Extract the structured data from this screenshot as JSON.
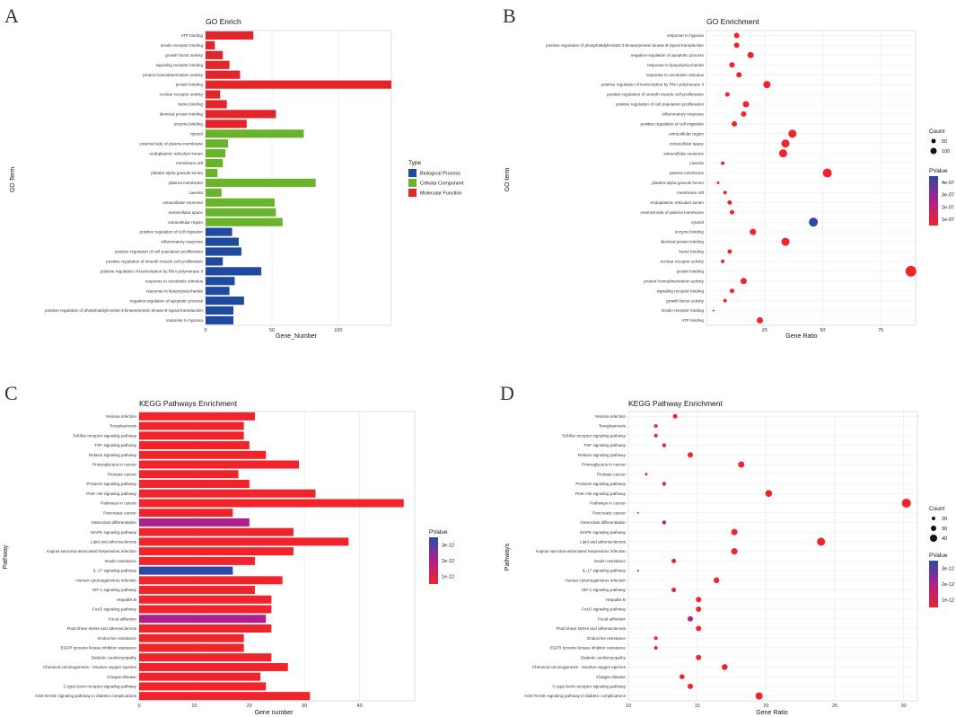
{
  "colors": {
    "bio": "#1f4aa0",
    "cell": "#6ab42d",
    "mol": "#e0262a",
    "p_high": "#2a4aa8",
    "p_mid": "#b0208a",
    "p_low": "#f0242a",
    "grid": "#e8e8e8"
  },
  "chart_data": [
    {
      "panel": "A",
      "type": "bar",
      "title": "GO Enrich",
      "xlabel": "Gene_Number",
      "ylabel": "GO Term",
      "xlim": [
        0,
        140
      ],
      "xticks": [
        0,
        50,
        100
      ],
      "legend": {
        "title": "Type",
        "items": [
          {
            "name": "Biological Process",
            "color": "#1f4aa0"
          },
          {
            "name": "Cellular Component",
            "color": "#6ab42d"
          },
          {
            "name": "Molecular Function",
            "color": "#e0262a"
          }
        ]
      },
      "categories": [
        "ATP binding",
        "insulin receptor binding",
        "growth factor activity",
        "signaling receptor binding",
        "protein homodimerization activity",
        "protein binding",
        "nuclear receptor activity",
        "heme binding",
        "identical protein binding",
        "enzyme binding",
        "cytosol",
        "external side of plasma membrane",
        "endoplasmic reticulum lumen",
        "membrane raft",
        "platelet alpha granule lumen",
        "plasma membrane",
        "caveola",
        "extracellular exosome",
        "extracellular space",
        "extracellular region",
        "positive regulation of cell migration",
        "inflammatory response",
        "positive regulation of cell population proliferation",
        "positive regulation of smooth muscle cell proliferation",
        "positive regulation of transcription by RNA polymerase II",
        "response to xenobiotic stimulus",
        "response to lipopolysaccharide",
        "negative regulation of apoptotic process",
        "positive regulation of phosphatidylinositol 3-kinase/protein kinase B signal transduction",
        "response to hypoxia"
      ],
      "values": [
        36,
        7,
        13,
        18,
        26,
        140,
        11,
        16,
        53,
        31,
        74,
        17,
        15,
        13,
        9,
        83,
        12,
        52,
        53,
        58,
        20,
        25,
        27,
        13,
        42,
        22,
        18,
        29,
        21,
        21
      ],
      "types": [
        "mol",
        "mol",
        "mol",
        "mol",
        "mol",
        "mol",
        "mol",
        "mol",
        "mol",
        "mol",
        "cell",
        "cell",
        "cell",
        "cell",
        "cell",
        "cell",
        "cell",
        "cell",
        "cell",
        "cell",
        "bio",
        "bio",
        "bio",
        "bio",
        "bio",
        "bio",
        "bio",
        "bio",
        "bio",
        "bio"
      ]
    },
    {
      "panel": "B",
      "type": "scatter",
      "title": "GO Enrichment",
      "xlabel": "Gene Ratio",
      "ylabel": "GO term",
      "xlim": [
        0,
        90
      ],
      "xticks": [
        25,
        50,
        75
      ],
      "size_legend": {
        "title": "Count",
        "items": [
          50,
          100
        ]
      },
      "color_legend": {
        "title": "PValue",
        "labels": [
          "4e-07",
          "3e-07",
          "2e-07",
          "1e-07"
        ]
      },
      "categories": [
        "response to hypoxia",
        "positive regulation of phosphatidylinositol 3-kinase/protein kinase B signal transduction",
        "negative regulation of apoptotic process",
        "response to lipopolysaccharide",
        "response to xenobiotic stimulus",
        "positive regulation of transcription by RNA polymerase II",
        "positive regulation of smooth muscle cell proliferation",
        "positive regulation of cell population proliferation",
        "inflammatory response",
        "positive regulation of cell migration",
        "extracellular region",
        "extracellular space",
        "extracellular exosome",
        "caveola",
        "plasma membrane",
        "platelet alpha granule lumen",
        "membrane raft",
        "endoplasmic reticulum lumen",
        "external side of plasma membrane",
        "cytosol",
        "enzyme binding",
        "identical protein binding",
        "heme binding",
        "nuclear receptor activity",
        "protein binding",
        "protein homodimerization activity",
        "signaling receptor binding",
        "growth factor activity",
        "insulin receptor binding",
        "ATP binding"
      ],
      "x": [
        13,
        13,
        19,
        11,
        14,
        26,
        9,
        17,
        16,
        12,
        37,
        34,
        33,
        7,
        52,
        5,
        8,
        10,
        11,
        46,
        20,
        34,
        10,
        7,
        88,
        16,
        11,
        8,
        3,
        23
      ],
      "sizes": [
        3,
        3,
        3.5,
        3,
        3,
        4,
        2.5,
        3.5,
        3,
        3,
        4.5,
        4.5,
        4.5,
        2,
        5,
        1.5,
        2,
        2.5,
        2.5,
        5,
        3.5,
        4.5,
        2.5,
        2,
        6,
        3.5,
        2.5,
        2,
        1,
        3.5
      ],
      "pvalue_color": [
        "low",
        "low",
        "low",
        "low",
        "low",
        "low",
        "low",
        "low",
        "low",
        "low",
        "low",
        "low",
        "low",
        "low",
        "low",
        "low",
        "low",
        "low",
        "low",
        "high",
        "low",
        "low",
        "low",
        "low",
        "low",
        "low",
        "low",
        "low",
        "low",
        "low"
      ]
    },
    {
      "panel": "C",
      "type": "bar",
      "title": "KEGG Pathways Enrichment",
      "xlabel": "Gene number",
      "ylabel": "Pathway",
      "xlim": [
        0,
        50
      ],
      "xticks": [
        0,
        10,
        20,
        30,
        40
      ],
      "color_legend": {
        "title": "PValue",
        "labels": [
          "3e-12",
          "2e-12",
          "1e-12"
        ]
      },
      "categories": [
        "Yersinia infection",
        "Toxoplasmosis",
        "Toll-like receptor signaling pathway",
        "TNF signaling pathway",
        "Relaxin signaling pathway",
        "Proteoglycans in cancer",
        "Prostate cancer",
        "Prolactin signaling pathway",
        "PI3K-Akt signaling pathway",
        "Pathways in cancer",
        "Pancreatic cancer",
        "Osteoclast differentiation",
        "MAPK signaling pathway",
        "Lipid and atherosclerosis",
        "Kaposi sarcoma-associated herpesvirus infection",
        "Insulin resistance",
        "IL-17 signaling pathway",
        "Human cytomegalovirus infection",
        "HIF-1 signaling pathway",
        "Hepatitis B",
        "FoxO signaling pathway",
        "Focal adhesion",
        "Fluid shear stress and atherosclerosis",
        "Endocrine resistance",
        "EGFR tyrosine kinase inhibitor resistance",
        "Diabetic cardiomyopathy",
        "Chemical carcinogenesis - reactive oxygen species",
        "Chagas disease",
        "C-type lectin receptor signaling pathway",
        "AGE-RAGE signaling pathway in diabetic complications"
      ],
      "values": [
        21,
        19,
        19,
        20,
        23,
        29,
        18,
        20,
        32,
        48,
        17,
        20,
        28,
        38,
        28,
        21,
        17,
        26,
        21,
        24,
        24,
        23,
        24,
        19,
        19,
        24,
        27,
        22,
        23,
        31
      ],
      "pvalue_color": [
        "low",
        "low",
        "low",
        "low",
        "low",
        "low",
        "low",
        "low",
        "low",
        "low",
        "low",
        "mid",
        "low",
        "low",
        "low",
        "low",
        "high",
        "low",
        "low",
        "low",
        "low",
        "mid",
        "low",
        "low",
        "low",
        "low",
        "low",
        "low",
        "low",
        "low"
      ]
    },
    {
      "panel": "D",
      "type": "scatter",
      "title": "KEGG Pathway Enrichment",
      "xlabel": "Gene Ratio",
      "ylabel": "Pathways",
      "xlim": [
        10,
        31
      ],
      "xticks": [
        10,
        15,
        20,
        25,
        30
      ],
      "size_legend": {
        "title": "Count",
        "items": [
          20,
          30,
          40
        ]
      },
      "color_legend": {
        "title": "PValue",
        "labels": [
          "3e-12",
          "2e-12",
          "1e-12"
        ]
      },
      "categories": [
        "Yersinia infection",
        "Toxoplasmosis",
        "Toll-like receptor signaling pathway",
        "TNF signaling pathway",
        "Relaxin signaling pathway",
        "Proteoglycans in cancer",
        "Prostate cancer",
        "Prolactin signaling pathway",
        "PI3K-Akt signaling pathway",
        "Pathways in cancer",
        "Pancreatic cancer",
        "Osteoclast differentiation",
        "MAPK signaling pathway",
        "Lipid and atherosclerosis",
        "Kaposi sarcoma-associated herpesvirus infection",
        "Insulin resistance",
        "IL-17 signaling pathway",
        "Human cytomegalovirus infection",
        "HIF-1 signaling pathway",
        "Hepatitis B",
        "FoxO signaling pathway",
        "Focal adhesion",
        "Fluid shear stress and atherosclerosis",
        "Endocrine resistance",
        "EGFR tyrosine kinase inhibitor resistance",
        "Diabetic cardiomyopathy",
        "Chemical carcinogenesis - reactive oxygen species",
        "Chagas disease",
        "C-type lectin receptor signaling pathway",
        "AGE-RAGE signaling pathway in diabetic complications"
      ],
      "x": [
        13.4,
        12.0,
        12.0,
        12.6,
        14.5,
        18.2,
        11.3,
        12.6,
        20.2,
        30.2,
        10.7,
        12.6,
        17.7,
        24.0,
        17.7,
        13.3,
        10.7,
        16.4,
        13.3,
        15.1,
        15.1,
        14.5,
        15.1,
        12.0,
        12.0,
        15.1,
        17.0,
        13.9,
        14.5,
        19.5
      ],
      "sizes": [
        2.5,
        2,
        2,
        2.2,
        3,
        3.5,
        1.5,
        2.2,
        3.8,
        5,
        1,
        2.2,
        3.5,
        4.5,
        3.5,
        2.5,
        1,
        3.2,
        2.5,
        3,
        3,
        3,
        3,
        2,
        2,
        3,
        3.3,
        2.8,
        3,
        4
      ],
      "pvalue_color": [
        "low",
        "low",
        "low",
        "low",
        "low",
        "low",
        "low",
        "low",
        "low",
        "low",
        "low",
        "mid",
        "low",
        "low",
        "low",
        "low",
        "high",
        "low",
        "low",
        "low",
        "low",
        "mid",
        "low",
        "low",
        "low",
        "low",
        "low",
        "low",
        "low",
        "low"
      ]
    }
  ],
  "panel_letters": [
    "A",
    "B",
    "C",
    "D"
  ]
}
